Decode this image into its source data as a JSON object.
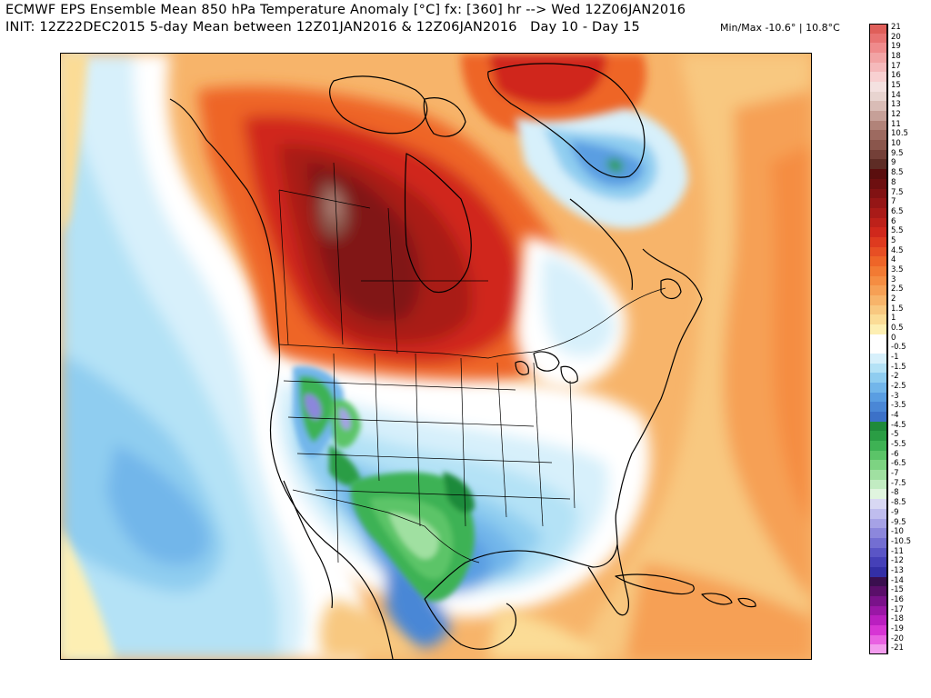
{
  "header": {
    "title_line1": "ECMWF EPS Ensemble Mean 850 hPa Temperature Anomaly [°C] fx: [360] hr --> Wed 12Z06JAN2016",
    "title_line2": "INIT: 12Z22DEC2015 5-day Mean between 12Z01JAN2016 & 12Z06JAN2016   Day 10 - Day 15",
    "minmax": "Min/Max -10.6° | 10.8°C"
  },
  "map": {
    "region": "North America",
    "variable": "850 hPa temperature anomaly",
    "units": "°C"
  },
  "colors": {
    "warm_strong": "#7a0f0f",
    "warm_mid": "#d84a1c",
    "warm_light": "#f4a25b",
    "near_zero": "#ffffff",
    "cool_light": "#bfe7f7",
    "cool_mid": "#5f9fe0",
    "cold_green": "#2fae48",
    "cold_purple": "#8f7fd9"
  },
  "legend": [
    {
      "label": "21",
      "color": "#df5f5a"
    },
    {
      "label": "20",
      "color": "#e87372"
    },
    {
      "label": "19",
      "color": "#ef8b8c"
    },
    {
      "label": "18",
      "color": "#f2a4a5"
    },
    {
      "label": "17",
      "color": "#f5b9bb"
    },
    {
      "label": "16",
      "color": "#f8d0d1"
    },
    {
      "label": "15",
      "color": "#f4e1e0"
    },
    {
      "label": "14",
      "color": "#e8d4d0"
    },
    {
      "label": "13",
      "color": "#d9bcb6"
    },
    {
      "label": "12",
      "color": "#c6a098"
    },
    {
      "label": "11",
      "color": "#b18379"
    },
    {
      "label": "10.5",
      "color": "#9d6a60"
    },
    {
      "label": "10",
      "color": "#8a564c"
    },
    {
      "label": "9.5",
      "color": "#744038"
    },
    {
      "label": "9",
      "color": "#5e2c25"
    },
    {
      "label": "8.5",
      "color": "#5a0e0e"
    },
    {
      "label": "8",
      "color": "#6d0f10"
    },
    {
      "label": "7.5",
      "color": "#811213"
    },
    {
      "label": "7",
      "color": "#951616"
    },
    {
      "label": "6.5",
      "color": "#a91b18"
    },
    {
      "label": "6",
      "color": "#bd211a"
    },
    {
      "label": "5.5",
      "color": "#d0281c"
    },
    {
      "label": "5",
      "color": "#de3a1f"
    },
    {
      "label": "4.5",
      "color": "#e74f24"
    },
    {
      "label": "4",
      "color": "#ee6528"
    },
    {
      "label": "3.5",
      "color": "#f27a33"
    },
    {
      "label": "3",
      "color": "#f58d42"
    },
    {
      "label": "2.5",
      "color": "#f6a055"
    },
    {
      "label": "2",
      "color": "#f7b46a"
    },
    {
      "label": "1.5",
      "color": "#f8c880"
    },
    {
      "label": "1",
      "color": "#fbdc96"
    },
    {
      "label": "0.5",
      "color": "#fdefb3"
    },
    {
      "label": "0",
      "color": "#ffffff"
    },
    {
      "label": "-0.5",
      "color": "#ffffff"
    },
    {
      "label": "-1",
      "color": "#d7f0fb"
    },
    {
      "label": "-1.5",
      "color": "#b4e2f6"
    },
    {
      "label": "-2",
      "color": "#8fcdf0"
    },
    {
      "label": "-2.5",
      "color": "#72b6ea"
    },
    {
      "label": "-3",
      "color": "#5a9ee2"
    },
    {
      "label": "-3.5",
      "color": "#4a87d6"
    },
    {
      "label": "-4",
      "color": "#3c71c8"
    },
    {
      "label": "-4.5",
      "color": "#1f8a3a"
    },
    {
      "label": "-5",
      "color": "#2a9d44"
    },
    {
      "label": "-5.5",
      "color": "#3eb254"
    },
    {
      "label": "-6",
      "color": "#5bc468"
    },
    {
      "label": "-6.5",
      "color": "#7dd382"
    },
    {
      "label": "-7",
      "color": "#a0e0a1"
    },
    {
      "label": "-7.5",
      "color": "#c2ecc2"
    },
    {
      "label": "-8",
      "color": "#e0f5df"
    },
    {
      "label": "-8.5",
      "color": "#d8d8f3"
    },
    {
      "label": "-9",
      "color": "#bfbdee"
    },
    {
      "label": "-9.5",
      "color": "#a6a2e6"
    },
    {
      "label": "-10",
      "color": "#8c87dc"
    },
    {
      "label": "-10.5",
      "color": "#736ed2"
    },
    {
      "label": "-11",
      "color": "#5a55c6"
    },
    {
      "label": "-12",
      "color": "#4540b8"
    },
    {
      "label": "-13",
      "color": "#332fa6"
    },
    {
      "label": "-14",
      "color": "#3a0f4f"
    },
    {
      "label": "-15",
      "color": "#5a0f6a"
    },
    {
      "label": "-16",
      "color": "#7a128a"
    },
    {
      "label": "-17",
      "color": "#9a17a6"
    },
    {
      "label": "-18",
      "color": "#ba1fc0"
    },
    {
      "label": "-19",
      "color": "#d735d4"
    },
    {
      "label": "-20",
      "color": "#e962e2"
    },
    {
      "label": "-21",
      "color": "#f39cee"
    }
  ]
}
